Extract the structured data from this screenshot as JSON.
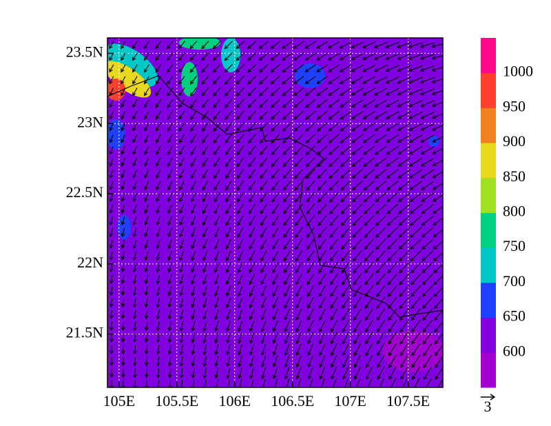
{
  "map": {
    "xlim": [
      104.9,
      107.8
    ],
    "ylim": [
      21.12,
      23.61
    ],
    "xticks": [
      {
        "value": 105,
        "label": "105E"
      },
      {
        "value": 105.5,
        "label": "105.5E"
      },
      {
        "value": 106,
        "label": "106E"
      },
      {
        "value": 106.5,
        "label": "106.5E"
      },
      {
        "value": 107,
        "label": "107E"
      },
      {
        "value": 107.5,
        "label": "107.5E"
      }
    ],
    "yticks": [
      {
        "value": 21.5,
        "label": "21.5N"
      },
      {
        "value": 22,
        "label": "22N"
      },
      {
        "value": 22.5,
        "label": "22.5N"
      },
      {
        "value": 23,
        "label": "23N"
      },
      {
        "value": 23.5,
        "label": "23.5N"
      }
    ],
    "grid": true,
    "background_color": "#8000e0"
  },
  "colorbar": {
    "levels": [
      600,
      650,
      700,
      750,
      800,
      850,
      900,
      950,
      1000
    ],
    "colors": [
      "#a000d0",
      "#8000e0",
      "#2040ff",
      "#00c8c8",
      "#00d080",
      "#a0e020",
      "#e8d820",
      "#f08020",
      "#ff4030",
      "#ff0a8c"
    ]
  },
  "vector_reference": {
    "label": "3"
  }
}
